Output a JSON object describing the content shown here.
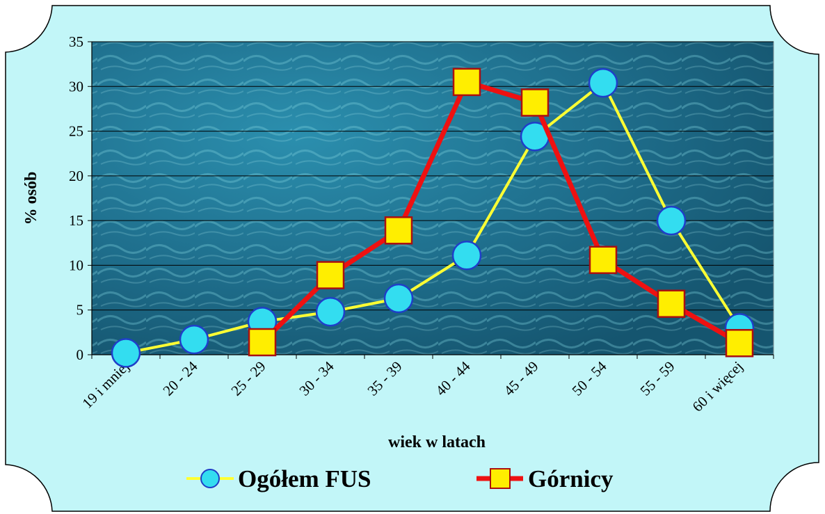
{
  "colors": {
    "background": "#c2f6f8",
    "plot_bg": "#1f6f8d",
    "ogolem_line": "#ffff33",
    "ogolem_marker": "#33ddf0",
    "ogolem_marker_edge": "#1f3ec8",
    "gornicy_line": "#ee1111",
    "gornicy_marker": "#ffee00",
    "gornicy_marker_edge": "#aa1010"
  },
  "chart_data": {
    "type": "line",
    "title": "",
    "xlabel": "wiek w latach",
    "ylabel": "% osób",
    "ylim": [
      0,
      35
    ],
    "yticks": [
      0,
      5,
      10,
      15,
      20,
      25,
      30,
      35
    ],
    "grid": true,
    "legend": "bottom",
    "categories": [
      "19 i mniej",
      "20 - 24",
      "25 - 29",
      "30 - 34",
      "35 - 39",
      "40 - 44",
      "45 - 49",
      "50 - 54",
      "55 - 59",
      "60 i więcej"
    ],
    "series": [
      {
        "name": "Ogółem FUS",
        "marker": "circle",
        "values": [
          0.2,
          1.7,
          3.7,
          4.8,
          6.3,
          11.1,
          24.4,
          30.4,
          15.0,
          3.0
        ]
      },
      {
        "name": "Górnicy",
        "marker": "square",
        "values": [
          null,
          null,
          1.4,
          8.9,
          13.9,
          30.5,
          28.2,
          10.6,
          5.7,
          1.3
        ]
      }
    ]
  }
}
